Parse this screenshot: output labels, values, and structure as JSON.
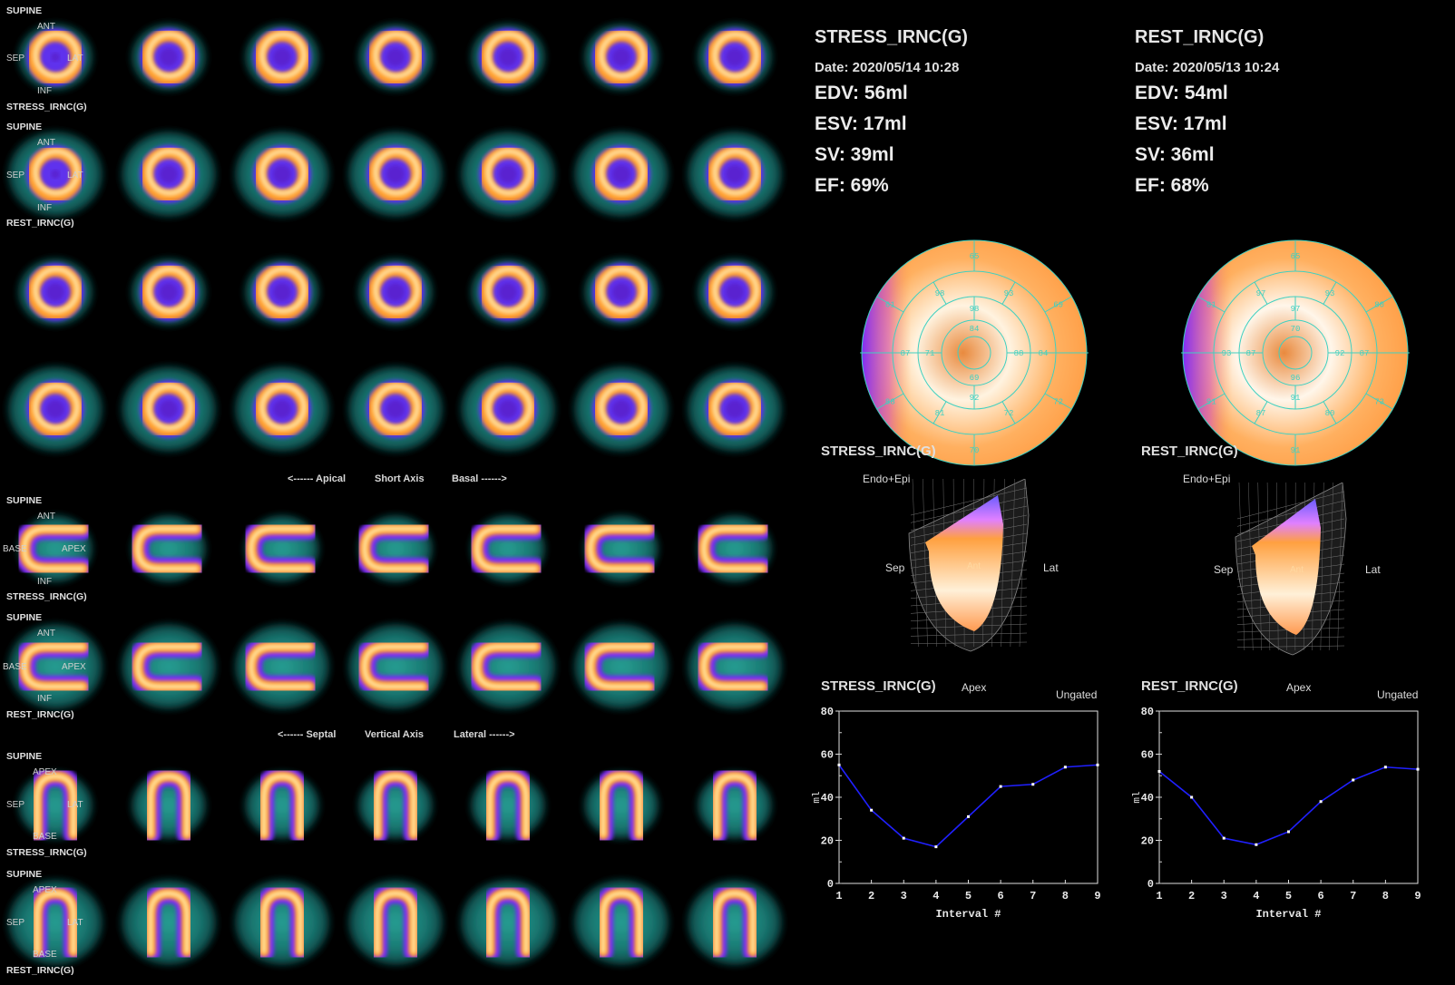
{
  "colors": {
    "background": "#000000",
    "halo": "#1f8c84",
    "hot": "#ffd27a",
    "mid": "#ff8a1a",
    "cold": "#7a27ff",
    "curve": "#2020ff"
  },
  "sa_panel": {
    "row1": {
      "pos": "SUPINE",
      "ant": "ANT",
      "sep": "SEP",
      "lat": "LAT",
      "inf": "INF",
      "name": "STRESS_IRNC(G)"
    },
    "row2": {
      "pos": "SUPINE",
      "ant": "ANT",
      "sep": "SEP",
      "lat": "LAT",
      "inf": "INF",
      "name": "REST_IRNC(G)"
    },
    "axis": {
      "left": "<------ Apical",
      "mid": "Short Axis",
      "right": "Basal ------>"
    }
  },
  "vla_panel": {
    "row1": {
      "pos": "SUPINE",
      "ant": "ANT",
      "base": "BASE",
      "apex": "APEX",
      "inf": "INF",
      "name": "STRESS_IRNC(G)"
    },
    "row2": {
      "pos": "SUPINE",
      "ant": "ANT",
      "base": "BASE",
      "apex": "APEX",
      "inf": "INF",
      "name": "REST_IRNC(G)"
    },
    "axis": {
      "left": "<------ Septal",
      "mid": "Vertical Axis",
      "right": "Lateral ------>"
    }
  },
  "hla_panel": {
    "row1": {
      "pos": "SUPINE",
      "apex": "APEX",
      "sep": "SEP",
      "lat": "LAT",
      "base": "BASE",
      "name": "STRESS_IRNC(G)"
    },
    "row2": {
      "pos": "SUPINE",
      "apex": "APEX",
      "sep": "SEP",
      "lat": "LAT",
      "base": "BASE",
      "name": "REST_IRNC(G)"
    }
  },
  "stress": {
    "title": "STRESS_IRNC(G)",
    "date": "Date: 2020/05/14 10:28",
    "edv": "EDV: 56ml",
    "esv": "ESV: 17ml",
    "sv": "SV: 39ml",
    "ef": "EF: 69%",
    "polar_label": "STRESS_IRNC(G)",
    "endo": "Endo+Epi",
    "sep": "Sep",
    "lat": "Lat",
    "ant": "Ant",
    "polar_values": [
      "65",
      "69",
      "72",
      "70",
      "88",
      "61",
      "93",
      "84",
      "72",
      "81",
      "87",
      "98",
      "98",
      "88",
      "92",
      "71",
      "84",
      "69"
    ],
    "curve_label": "STRESS_IRNC(G)",
    "apex": "Apex",
    "ungated": "Ungated"
  },
  "rest": {
    "title": "REST_IRNC(G)",
    "date": "Date: 2020/05/13 10:24",
    "edv": "EDV: 54ml",
    "esv": "ESV: 17ml",
    "sv": "SV: 36ml",
    "ef": "EF: 68%",
    "polar_label": "REST_IRNC(G)",
    "endo": "Endo+Epi",
    "sep": "Sep",
    "lat": "Lat",
    "ant": "Ant",
    "polar_values": [
      "65",
      "80",
      "73",
      "91",
      "91",
      "81",
      "93",
      "87",
      "80",
      "87",
      "93",
      "97",
      "97",
      "92",
      "91",
      "87",
      "70",
      "96"
    ],
    "curve_label": "REST_IRNC(G)",
    "apex": "Apex",
    "ungated": "Ungated"
  },
  "chart_data": [
    {
      "type": "line",
      "title": "STRESS_IRNC(G)",
      "xlabel": "Interval #",
      "ylabel": "ml",
      "x": [
        1,
        2,
        3,
        4,
        5,
        6,
        7,
        8,
        9
      ],
      "y": [
        55,
        34,
        21,
        17,
        31,
        45,
        46,
        54,
        55
      ],
      "xlim": [
        1,
        9
      ],
      "ylim": [
        0,
        80
      ],
      "yticks": [
        0,
        20,
        40,
        60,
        80
      ],
      "xticks": [
        1,
        2,
        3,
        4,
        5,
        6,
        7,
        8,
        9
      ]
    },
    {
      "type": "line",
      "title": "REST_IRNC(G)",
      "xlabel": "Interval #",
      "ylabel": "ml",
      "x": [
        1,
        2,
        3,
        4,
        5,
        6,
        7,
        8,
        9
      ],
      "y": [
        52,
        40,
        21,
        18,
        24,
        38,
        48,
        54,
        53
      ],
      "xlim": [
        1,
        9
      ],
      "ylim": [
        0,
        80
      ],
      "yticks": [
        0,
        20,
        40,
        60,
        80
      ],
      "xticks": [
        1,
        2,
        3,
        4,
        5,
        6,
        7,
        8,
        9
      ]
    }
  ]
}
